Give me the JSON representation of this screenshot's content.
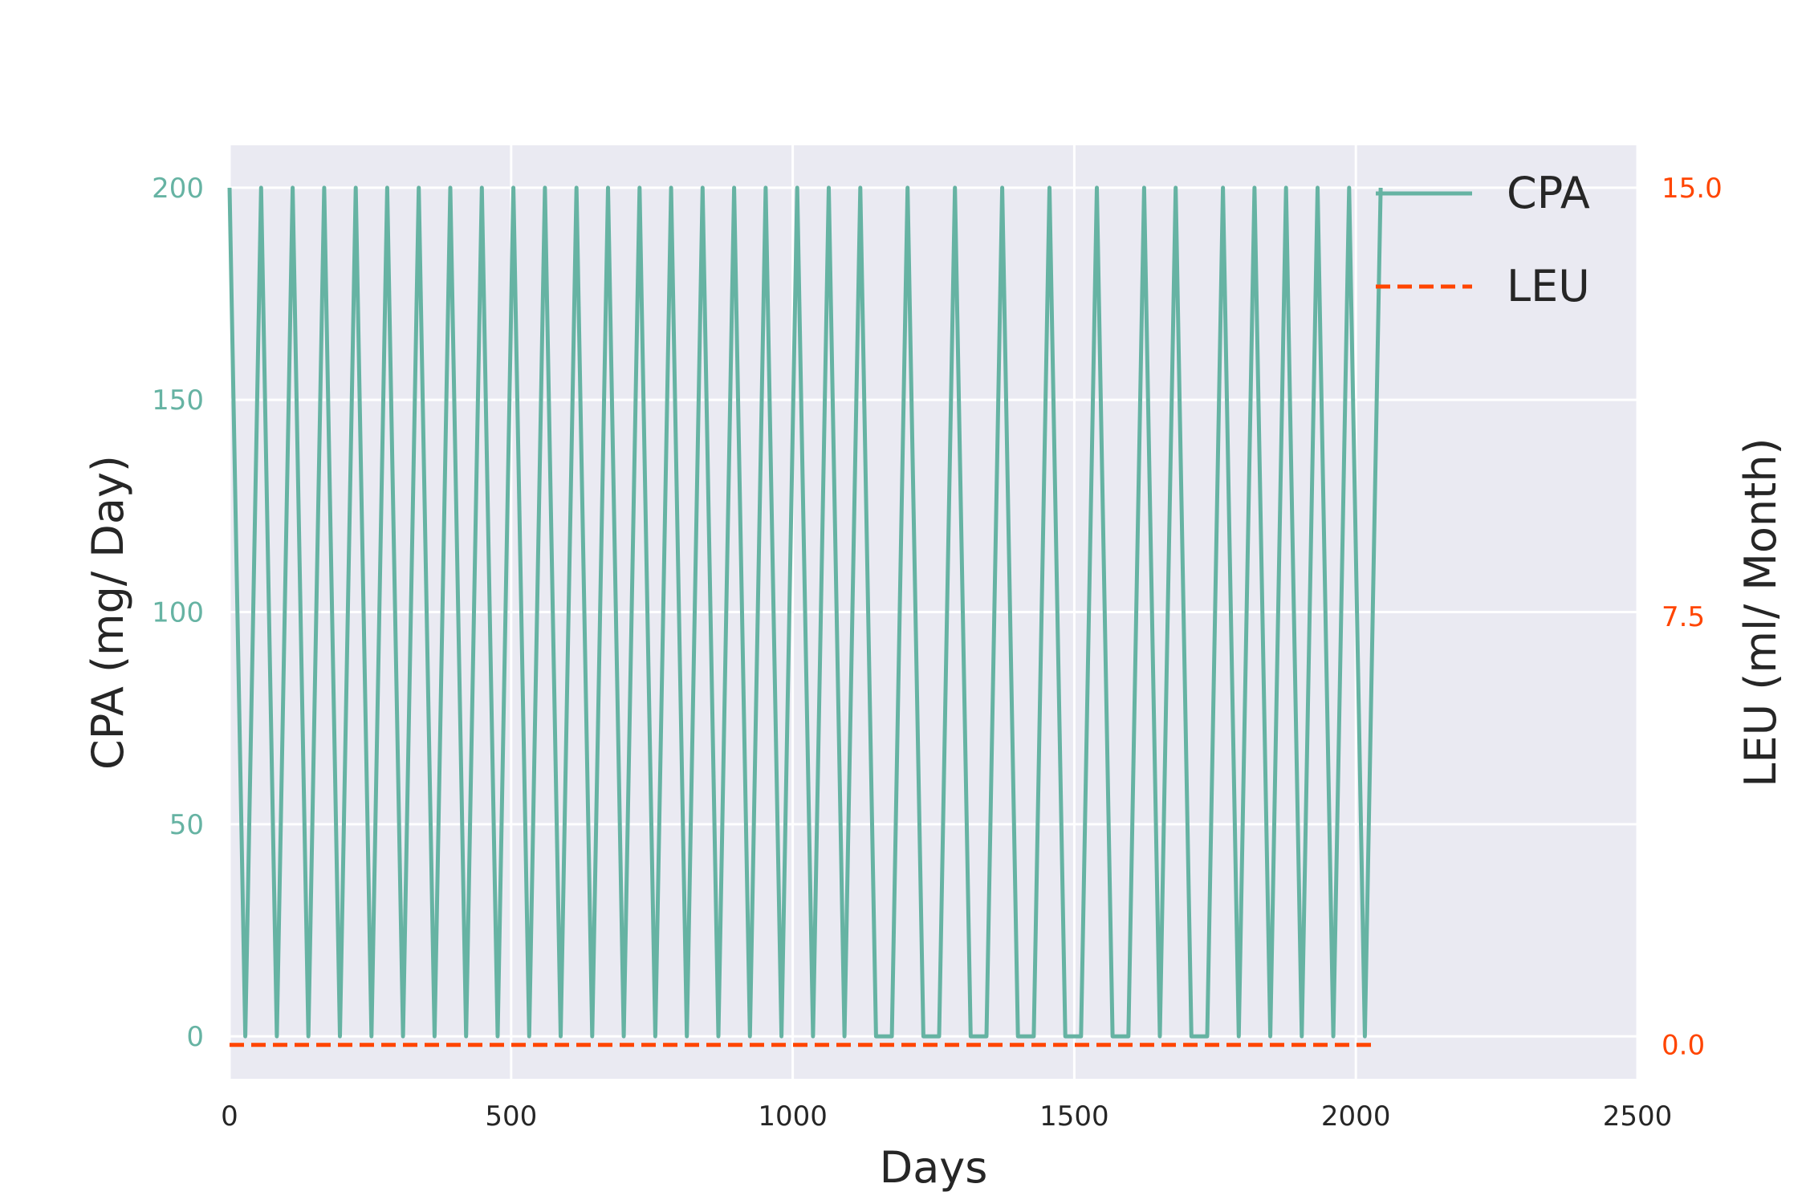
{
  "chart_data": {
    "type": "line",
    "title": "",
    "xlabel": "Days",
    "ylabel_left": "CPA (mg/ Day)",
    "ylabel_right": "LEU (ml/ Month)",
    "xlim": [
      0,
      2500
    ],
    "ylim_left": [
      -10,
      210
    ],
    "ylim_right": [
      0,
      15
    ],
    "x_ticks": [
      0,
      500,
      1000,
      1500,
      2000,
      2500
    ],
    "x_tick_labels": [
      "0",
      "500",
      "1000",
      "1500",
      "2000",
      "2500"
    ],
    "y_left_ticks": [
      0,
      50,
      100,
      150,
      200
    ],
    "y_left_tick_labels": [
      "0",
      "50",
      "100",
      "150",
      "200"
    ],
    "y_right_ticks": [
      0,
      7.5,
      15
    ],
    "y_right_tick_labels": [
      "0.0",
      "7.5",
      "15.0"
    ],
    "grid": true,
    "legend_position": "top-right",
    "series": [
      {
        "name": "CPA",
        "axis": "left",
        "color": "#66b3a3",
        "style": "solid",
        "points": [
          [
            0,
            200
          ],
          [
            28,
            0
          ],
          [
            56,
            200
          ],
          [
            84,
            0
          ],
          [
            112,
            200
          ],
          [
            140,
            0
          ],
          [
            168,
            200
          ],
          [
            196,
            0
          ],
          [
            224,
            200
          ],
          [
            252,
            0
          ],
          [
            280,
            200
          ],
          [
            308,
            0
          ],
          [
            336,
            200
          ],
          [
            364,
            0
          ],
          [
            392,
            200
          ],
          [
            420,
            0
          ],
          [
            448,
            200
          ],
          [
            476,
            0
          ],
          [
            504,
            200
          ],
          [
            532,
            0
          ],
          [
            560,
            200
          ],
          [
            588,
            0
          ],
          [
            616,
            200
          ],
          [
            644,
            0
          ],
          [
            672,
            200
          ],
          [
            700,
            0
          ],
          [
            728,
            200
          ],
          [
            756,
            0
          ],
          [
            784,
            200
          ],
          [
            812,
            0
          ],
          [
            840,
            200
          ],
          [
            868,
            0
          ],
          [
            896,
            200
          ],
          [
            924,
            0
          ],
          [
            952,
            200
          ],
          [
            980,
            0
          ],
          [
            1008,
            200
          ],
          [
            1036,
            0
          ],
          [
            1064,
            200
          ],
          [
            1092,
            0
          ],
          [
            1120,
            200
          ],
          [
            1148,
            0
          ],
          [
            1176,
            0
          ],
          [
            1204,
            200
          ],
          [
            1232,
            0
          ],
          [
            1260,
            0
          ],
          [
            1288,
            200
          ],
          [
            1316,
            0
          ],
          [
            1344,
            0
          ],
          [
            1372,
            200
          ],
          [
            1400,
            0
          ],
          [
            1428,
            0
          ],
          [
            1456,
            200
          ],
          [
            1484,
            0
          ],
          [
            1512,
            0
          ],
          [
            1540,
            200
          ],
          [
            1568,
            0
          ],
          [
            1596,
            0
          ],
          [
            1624,
            200
          ],
          [
            1652,
            0
          ],
          [
            1680,
            200
          ],
          [
            1708,
            0
          ],
          [
            1736,
            0
          ],
          [
            1764,
            200
          ],
          [
            1792,
            0
          ],
          [
            1820,
            200
          ],
          [
            1848,
            0
          ],
          [
            1876,
            200
          ],
          [
            1904,
            0
          ],
          [
            1932,
            200
          ],
          [
            1960,
            0
          ],
          [
            1988,
            200
          ],
          [
            2016,
            0
          ],
          [
            2044,
            200
          ]
        ]
      },
      {
        "name": "LEU",
        "axis": "right",
        "color": "#ff4500",
        "style": "dashed",
        "points": [
          [
            0,
            0
          ],
          [
            2030,
            0
          ]
        ]
      }
    ]
  }
}
